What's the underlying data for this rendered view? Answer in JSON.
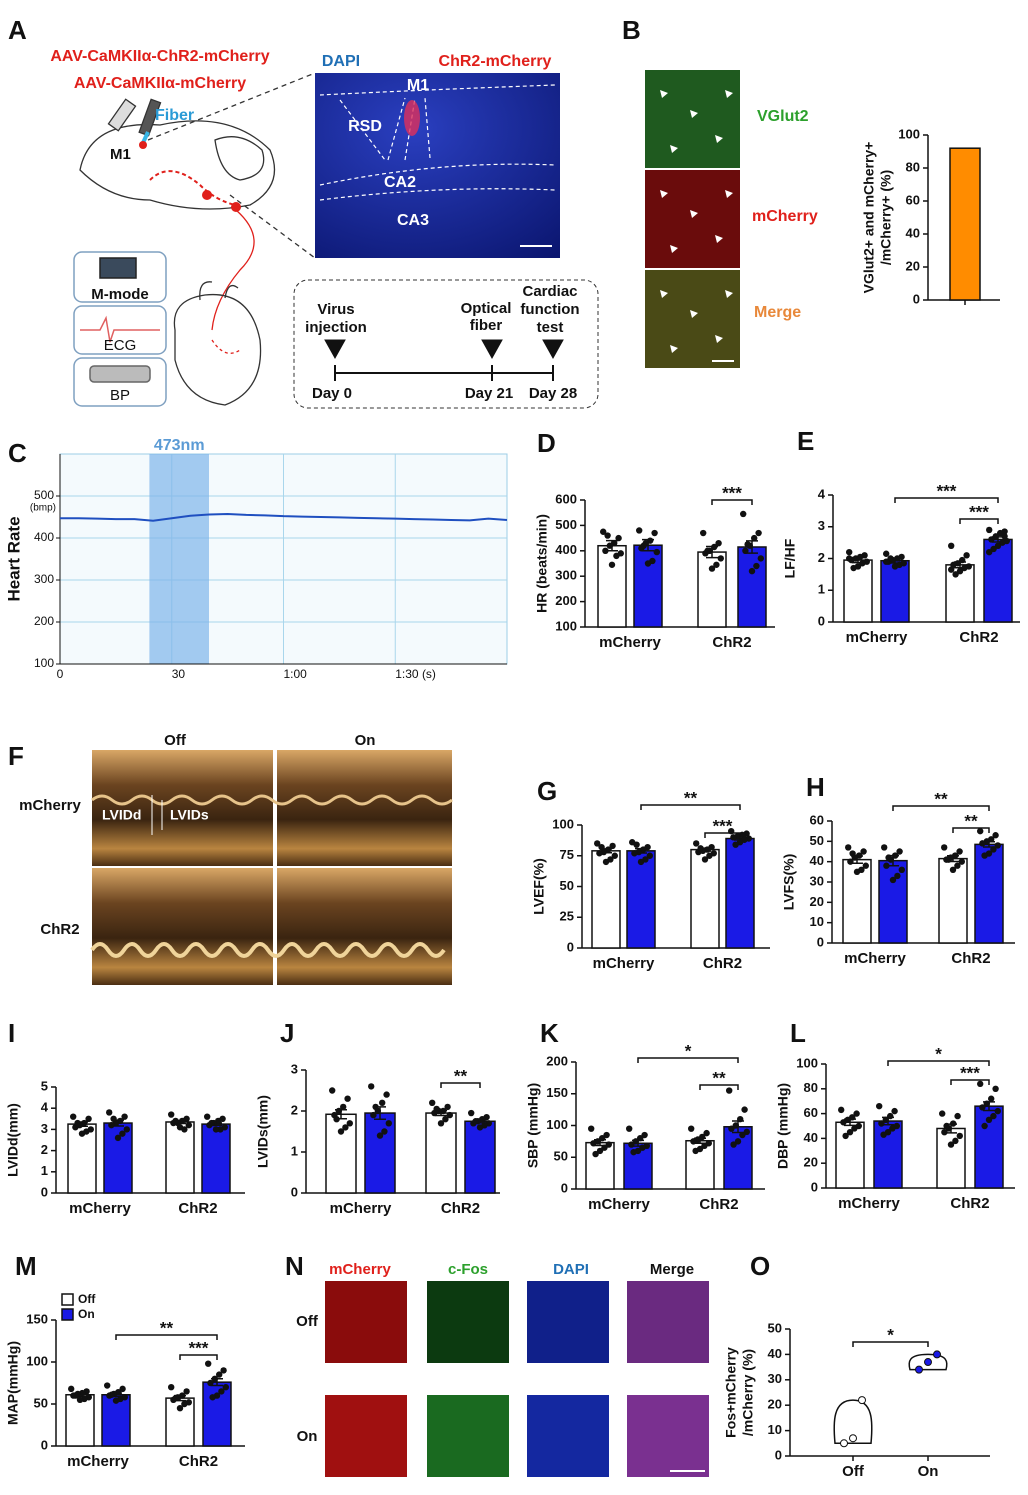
{
  "panels": {
    "letters": [
      "A",
      "B",
      "C",
      "D",
      "E",
      "F",
      "G",
      "H",
      "I",
      "J",
      "K",
      "L",
      "M",
      "N",
      "O"
    ],
    "a": {
      "vectors": [
        "AAV-CaMKIIα-ChR2-mCherry",
        "AAV-CaMKIIα-mCherry"
      ],
      "fiber": "Fiber",
      "region": "M1",
      "methods": [
        "M-mode",
        "ECG",
        "BP"
      ],
      "slice": {
        "stains": [
          "DAPI",
          "ChR2-mCherry"
        ],
        "regions": [
          "M1",
          "RSD",
          "CA2",
          "CA3"
        ]
      },
      "timeline": {
        "events": [
          [
            "Virus",
            "injection"
          ],
          [
            "Optical",
            "fiber"
          ],
          [
            "Cardiac",
            "function",
            "test"
          ]
        ],
        "days": [
          "Day 0",
          "Day 21",
          "Day 28"
        ]
      }
    },
    "b": {
      "labels": [
        "VGlut2",
        "mCherry",
        "Merge"
      ]
    },
    "f": {
      "columns": [
        "Off",
        "On"
      ],
      "rows": [
        "mCherry",
        "ChR2"
      ],
      "measures": [
        "LVIDd",
        "LVIDs"
      ]
    },
    "n": {
      "columns": [
        "mCherry",
        "c-Fos",
        "DAPI",
        "Merge"
      ],
      "rows": [
        "Off",
        "On"
      ]
    }
  },
  "chart_data": [
    {
      "type": "bar",
      "ylabel": [
        "VGlut2+ and mCherry+",
        "/mCherry+ (%)"
      ],
      "values": [
        92
      ],
      "color": "#ff8c00",
      "ylim": [
        0,
        100
      ],
      "yticks": [
        0,
        20,
        40,
        60,
        80,
        100
      ]
    },
    {
      "type": "line",
      "ylabel": "Heart Rate",
      "y_unit": "(bmp)",
      "x": [
        0,
        5,
        10,
        15,
        20,
        25,
        30,
        35,
        40,
        45,
        50,
        55,
        60,
        65,
        70,
        75,
        80,
        85,
        90,
        95,
        100,
        105,
        110,
        115,
        120
      ],
      "series": [
        {
          "color": "#1f4fc0",
          "values": [
            447,
            447,
            446,
            445,
            445,
            441,
            447,
            453,
            456,
            457,
            455,
            454,
            452,
            451,
            450,
            449,
            448,
            447,
            446,
            445,
            444,
            443,
            442,
            446,
            443
          ]
        }
      ],
      "xlim": [
        0,
        120
      ],
      "ylim": [
        100,
        600
      ],
      "xticks": [
        0,
        30,
        {
          "value": 60,
          "label": "1:00"
        },
        {
          "value": 90,
          "label": "1:30 (s)"
        }
      ],
      "yticks": [
        100,
        200,
        300,
        400,
        500
      ],
      "grid": true,
      "highlight": [
        24,
        40
      ],
      "highlight_label": "473nm"
    },
    {
      "type": "bar",
      "ylabel": "HR (beats/min)",
      "categories": [
        "mCherry",
        "ChR2"
      ],
      "ylim": [
        100,
        600
      ],
      "yticks": [
        100,
        200,
        300,
        400,
        500,
        600
      ],
      "annotations": [
        "***"
      ],
      "series": [
        {
          "color": "#ffffff",
          "values": [
            420,
            395
          ],
          "errors": [
            20,
            22
          ],
          "points": [
            [
              475,
              450,
              430,
              420,
              400,
              390,
              380,
              345,
              460
            ],
            [
              470,
              430,
              415,
              400,
              390,
              370,
              345,
              330,
              400
            ]
          ]
        },
        {
          "color": "#1a1ae6",
          "values": [
            422,
            415
          ],
          "errors": [
            22,
            24
          ],
          "points": [
            [
              480,
              470,
              440,
              430,
              410,
              395,
              360,
              350,
              420
            ],
            [
              545,
              470,
              450,
              420,
              400,
              370,
              340,
              320,
              425
            ]
          ]
        }
      ]
    },
    {
      "type": "bar",
      "ylabel": "LF/HF",
      "categories": [
        "mCherry",
        "ChR2"
      ],
      "ylim": [
        0,
        4
      ],
      "yticks": [
        0,
        1,
        2,
        3,
        4
      ],
      "annotations": [
        "***",
        "***"
      ],
      "series": [
        {
          "color": "#ffffff",
          "values": [
            1.95,
            1.8
          ],
          "errors": [
            0.08,
            0.09
          ],
          "points": [
            [
              2.2,
              2.1,
              2.05,
              2.0,
              1.95,
              1.9,
              1.85,
              1.75,
              1.7,
              2.0
            ],
            [
              2.4,
              2.1,
              1.95,
              1.85,
              1.8,
              1.75,
              1.7,
              1.6,
              1.5,
              1.65
            ]
          ]
        },
        {
          "color": "#1a1ae6",
          "values": [
            1.93,
            2.6
          ],
          "errors": [
            0.07,
            0.08
          ],
          "points": [
            [
              2.15,
              2.05,
              2.0,
              1.95,
              1.9,
              1.85,
              1.8,
              1.75,
              2.0,
              1.9
            ],
            [
              2.9,
              2.85,
              2.8,
              2.7,
              2.6,
              2.55,
              2.5,
              2.4,
              2.3,
              2.2,
              2.7
            ]
          ]
        }
      ]
    },
    {
      "type": "bar",
      "ylabel": "LVEF(%)",
      "categories": [
        "mCherry",
        "ChR2"
      ],
      "ylim": [
        0,
        100
      ],
      "yticks": [
        0,
        25,
        50,
        75,
        100
      ],
      "annotations": [
        "**",
        "***"
      ],
      "series": [
        {
          "color": "#ffffff",
          "values": [
            79,
            80
          ],
          "errors": [
            1.6,
            1.2
          ],
          "points": [
            [
              85,
              83,
              80,
              78,
              77,
              75,
              72,
              70,
              82
            ],
            [
              85,
              82,
              80,
              79,
              78,
              77,
              75,
              72,
              81
            ]
          ]
        },
        {
          "color": "#1a1ae6",
          "values": [
            79,
            89
          ],
          "errors": [
            1.8,
            1.2
          ],
          "points": [
            [
              86,
              82,
              80,
              78,
              77,
              75,
              72,
              70,
              84
            ],
            [
              95,
              93,
              92,
              91,
              90,
              89,
              88,
              86,
              84
            ]
          ]
        }
      ]
    },
    {
      "type": "bar",
      "ylabel": "LVFS(%)",
      "categories": [
        "mCherry",
        "ChR2"
      ],
      "ylim": [
        0,
        60
      ],
      "yticks": [
        0,
        10,
        20,
        30,
        40,
        50,
        60
      ],
      "annotations": [
        "**",
        "**"
      ],
      "series": [
        {
          "color": "#ffffff",
          "values": [
            41,
            41.5
          ],
          "errors": [
            1.8,
            1.4
          ],
          "points": [
            [
              47,
              45,
              43,
              42,
              40,
              38,
              36,
              35,
              44
            ],
            [
              47,
              45,
              43,
              42,
              41,
              40,
              38,
              36,
              41
            ]
          ]
        },
        {
          "color": "#1a1ae6",
          "values": [
            40.5,
            48.5
          ],
          "errors": [
            2.5,
            1.3
          ],
          "points": [
            [
              47,
              45,
              43,
              41,
              38,
              36,
              33,
              31,
              42
            ],
            [
              55,
              53,
              51,
              50,
              49,
              48,
              46,
              44,
              43
            ]
          ]
        }
      ]
    },
    {
      "type": "bar",
      "ylabel": "LVIDd(mm)",
      "categories": [
        "mCherry",
        "ChR2"
      ],
      "ylim": [
        0,
        5
      ],
      "yticks": [
        0,
        1,
        2,
        3,
        4,
        5
      ],
      "series": [
        {
          "color": "#ffffff",
          "values": [
            3.25,
            3.35
          ],
          "errors": [
            0.1,
            0.07
          ],
          "points": [
            [
              3.6,
              3.5,
              3.3,
              3.2,
              3.1,
              3.0,
              2.9,
              2.8,
              3.3
            ],
            [
              3.7,
              3.5,
              3.4,
              3.3,
              3.3,
              3.2,
              3.0,
              3.1,
              3.4
            ]
          ]
        },
        {
          "color": "#1a1ae6",
          "values": [
            3.3,
            3.25
          ],
          "errors": [
            0.14,
            0.06
          ],
          "points": [
            [
              3.8,
              3.6,
              3.4,
              3.3,
              3.2,
              3.0,
              2.8,
              2.6,
              3.5
            ],
            [
              3.6,
              3.5,
              3.4,
              3.3,
              3.2,
              3.1,
              3.0,
              3.0,
              3.3
            ]
          ]
        }
      ]
    },
    {
      "type": "bar",
      "ylabel": "LVIDs(mm)",
      "categories": [
        "mCherry",
        "ChR2"
      ],
      "ylim": [
        0,
        3
      ],
      "yticks": [
        0,
        1,
        2,
        3
      ],
      "annotations": [
        "**"
      ],
      "series": [
        {
          "color": "#ffffff",
          "values": [
            1.92,
            1.95
          ],
          "errors": [
            0.11,
            0.06
          ],
          "points": [
            [
              2.5,
              2.3,
              2.1,
              2.0,
              1.9,
              1.7,
              1.6,
              1.5,
              1.8
            ],
            [
              2.2,
              2.1,
              2.0,
              2.0,
              1.95,
              1.9,
              1.8,
              1.7,
              2.05
            ]
          ]
        },
        {
          "color": "#1a1ae6",
          "values": [
            1.95,
            1.75
          ],
          "errors": [
            0.15,
            0.04
          ],
          "points": [
            [
              2.6,
              2.4,
              2.2,
              2.0,
              1.9,
              1.7,
              1.5,
              1.4,
              2.1
            ],
            [
              1.95,
              1.85,
              1.8,
              1.75,
              1.7,
              1.7,
              1.65,
              1.6,
              1.75
            ]
          ]
        }
      ]
    },
    {
      "type": "bar",
      "ylabel": "SBP (mmHg)",
      "categories": [
        "mCherry",
        "ChR2"
      ],
      "ylim": [
        0,
        200
      ],
      "yticks": [
        0,
        50,
        100,
        150,
        200
      ],
      "annotations": [
        "*",
        "**"
      ],
      "series": [
        {
          "color": "#ffffff",
          "values": [
            73,
            76
          ],
          "errors": [
            4.5,
            4
          ],
          "points": [
            [
              95,
              85,
              80,
              75,
              72,
              70,
              65,
              60,
              55
            ],
            [
              95,
              88,
              82,
              78,
              75,
              72,
              68,
              63,
              60
            ]
          ]
        },
        {
          "color": "#1a1ae6",
          "values": [
            72,
            98
          ],
          "errors": [
            4.5,
            9
          ],
          "points": [
            [
              95,
              85,
              80,
              75,
              70,
              68,
              65,
              60,
              58
            ],
            [
              155,
              125,
              110,
              100,
              95,
              90,
              85,
              75,
              70
            ]
          ]
        }
      ]
    },
    {
      "type": "bar",
      "ylabel": "DBP (mmHg)",
      "categories": [
        "mCherry",
        "ChR2"
      ],
      "ylim": [
        0,
        100
      ],
      "yticks": [
        0,
        20,
        40,
        60,
        80,
        100
      ],
      "annotations": [
        "*",
        "***"
      ],
      "series": [
        {
          "color": "#ffffff",
          "values": [
            53,
            48
          ],
          "errors": [
            2.5,
            3.5
          ],
          "points": [
            [
              63,
              60,
              57,
              55,
              53,
              50,
              48,
              45,
              42
            ],
            [
              60,
              58,
              52,
              48,
              45,
              42,
              38,
              35,
              50
            ]
          ]
        },
        {
          "color": "#1a1ae6",
          "values": [
            54,
            66
          ],
          "errors": [
            3,
            3.5
          ],
          "points": [
            [
              66,
              62,
              58,
              55,
              52,
              50,
              48,
              45,
              43
            ],
            [
              84,
              80,
              72,
              68,
              65,
              62,
              58,
              55,
              50
            ]
          ]
        }
      ]
    },
    {
      "type": "bar",
      "ylabel": "MAP(mmHg)",
      "categories": [
        "mCherry",
        "ChR2"
      ],
      "ylim": [
        0,
        150
      ],
      "yticks": [
        0,
        50,
        100,
        150
      ],
      "annotations": [
        "**",
        "***"
      ],
      "series": [
        {
          "name": "Off",
          "color": "#ffffff",
          "values": [
            61,
            57
          ],
          "errors": [
            2,
            3
          ],
          "points": [
            [
              68,
              65,
              63,
              62,
              60,
              58,
              56,
              55,
              60
            ],
            [
              70,
              65,
              60,
              58,
              55,
              52,
              50,
              45,
              57
            ]
          ]
        },
        {
          "name": "On",
          "color": "#1a1ae6",
          "values": [
            61,
            76
          ],
          "errors": [
            2,
            4
          ],
          "points": [
            [
              72,
              68,
              64,
              62,
              60,
              58,
              56,
              54,
              61
            ],
            [
              98,
              90,
              85,
              80,
              75,
              70,
              65,
              60,
              58
            ]
          ]
        }
      ]
    },
    {
      "type": "violin",
      "ylabel": [
        "Fos+mCherry",
        "/mCherry (%)"
      ],
      "categories": [
        "Off",
        "On"
      ],
      "values": [
        [
          5,
          7,
          22
        ],
        [
          34,
          37,
          40
        ]
      ],
      "colors": [
        "#ffffff",
        "#1a1ae6"
      ],
      "ylim": [
        0,
        50
      ],
      "yticks": [
        0,
        10,
        20,
        30,
        40,
        50
      ],
      "annotations": [
        "*"
      ]
    }
  ]
}
